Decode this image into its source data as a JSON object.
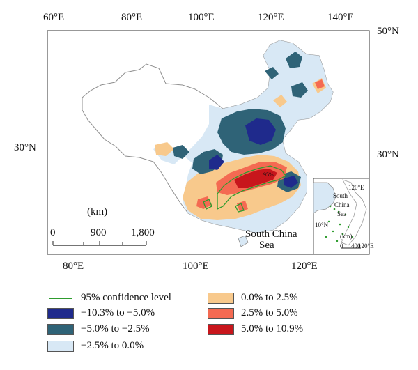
{
  "map": {
    "top_longitudes": [
      "60°E",
      "80°E",
      "100°E",
      "120°E",
      "140°E"
    ],
    "bottom_longitudes": [
      "80°E",
      "100°E",
      "120°E"
    ],
    "left_latitudes": [
      "30°N"
    ],
    "right_latitudes": [
      "50°N",
      "30°N"
    ],
    "scale": {
      "unit": "(km)",
      "ticks": [
        "0",
        "900",
        "1,800"
      ]
    },
    "sea_label_line1": "South China",
    "sea_label_line2": "Sea",
    "contour_label": "95%",
    "inset": {
      "labels": [
        "South",
        "China",
        "Sea",
        "(km)",
        "0",
        "400",
        "120°E",
        "10°N",
        "120°E"
      ]
    }
  },
  "legend": {
    "items": [
      {
        "label": "95% confidence level",
        "type": "line",
        "color": "#2e9c2e"
      },
      {
        "label": "−10.3% to −5.0%",
        "color": "#1f2a8c"
      },
      {
        "label": "−5.0% to −2.5%",
        "color": "#2f6377"
      },
      {
        "label": "−2.5% to 0.0%",
        "color": "#d8e8f5"
      },
      {
        "label": "0.0% to 2.5%",
        "color": "#f8c98c"
      },
      {
        "label": "2.5% to 5.0%",
        "color": "#f46a52"
      },
      {
        "label": "5.0% to 10.9%",
        "color": "#c8161c"
      }
    ]
  }
}
